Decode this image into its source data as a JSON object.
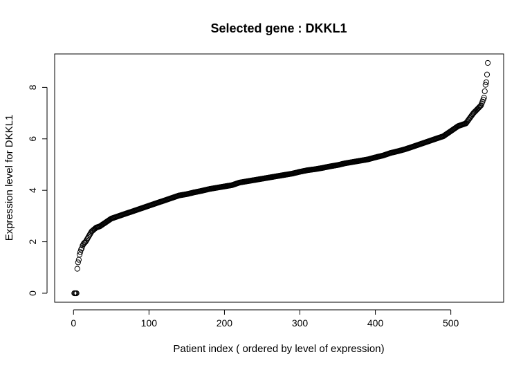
{
  "chart_data": {
    "type": "scatter",
    "title": "Selected gene : DKKL1",
    "xlabel": "Patient index ( ordered by level of expression)",
    "ylabel": "Expression level for DKKL1",
    "xlim": [
      -25,
      570
    ],
    "ylim": [
      -0.35,
      9.3
    ],
    "x_ticks": [
      0,
      100,
      200,
      300,
      400,
      500
    ],
    "y_ticks": [
      0,
      2,
      4,
      6,
      8
    ],
    "x_tick_labels": [
      "0",
      "100",
      "200",
      "300",
      "400",
      "500"
    ],
    "y_tick_labels": [
      "0",
      "2",
      "4",
      "6",
      "8"
    ],
    "grid": false,
    "legend": "none",
    "marker": "open-circle",
    "n_points": 549,
    "series": [
      {
        "x": [
          1,
          2,
          3,
          4,
          5,
          6,
          7,
          8,
          9,
          10,
          11,
          12,
          13,
          14,
          15,
          16,
          17,
          18,
          19,
          20,
          22,
          24,
          26,
          28,
          30,
          35,
          40,
          45,
          50,
          55,
          60,
          70,
          80,
          90,
          100,
          110,
          120,
          130,
          140,
          150,
          160,
          170,
          180,
          190,
          200,
          210,
          220,
          230,
          240,
          250,
          260,
          270,
          280,
          290,
          300,
          310,
          320,
          330,
          340,
          350,
          360,
          370,
          380,
          390,
          400,
          410,
          420,
          430,
          440,
          450,
          460,
          470,
          480,
          490,
          495,
          500,
          505,
          510,
          515,
          520,
          525,
          530,
          535,
          540,
          542,
          544,
          545,
          546,
          547,
          548,
          549
        ],
        "y": [
          0.0,
          0.0,
          0.0,
          0.0,
          0.95,
          1.2,
          1.3,
          1.5,
          1.6,
          1.7,
          1.75,
          1.85,
          1.9,
          1.95,
          1.97,
          2.0,
          2.05,
          2.1,
          2.15,
          2.2,
          2.3,
          2.4,
          2.45,
          2.5,
          2.55,
          2.6,
          2.7,
          2.8,
          2.9,
          2.95,
          3.0,
          3.1,
          3.2,
          3.3,
          3.4,
          3.5,
          3.6,
          3.7,
          3.8,
          3.85,
          3.92,
          3.98,
          4.05,
          4.1,
          4.15,
          4.2,
          4.3,
          4.35,
          4.4,
          4.45,
          4.5,
          4.55,
          4.6,
          4.65,
          4.72,
          4.78,
          4.82,
          4.87,
          4.93,
          4.98,
          5.05,
          5.1,
          5.15,
          5.2,
          5.28,
          5.35,
          5.45,
          5.52,
          5.6,
          5.7,
          5.8,
          5.9,
          6.0,
          6.1,
          6.2,
          6.3,
          6.4,
          6.5,
          6.55,
          6.6,
          6.8,
          7.0,
          7.15,
          7.3,
          7.45,
          7.6,
          7.85,
          8.1,
          8.2,
          8.5,
          8.95
        ]
      }
    ]
  }
}
